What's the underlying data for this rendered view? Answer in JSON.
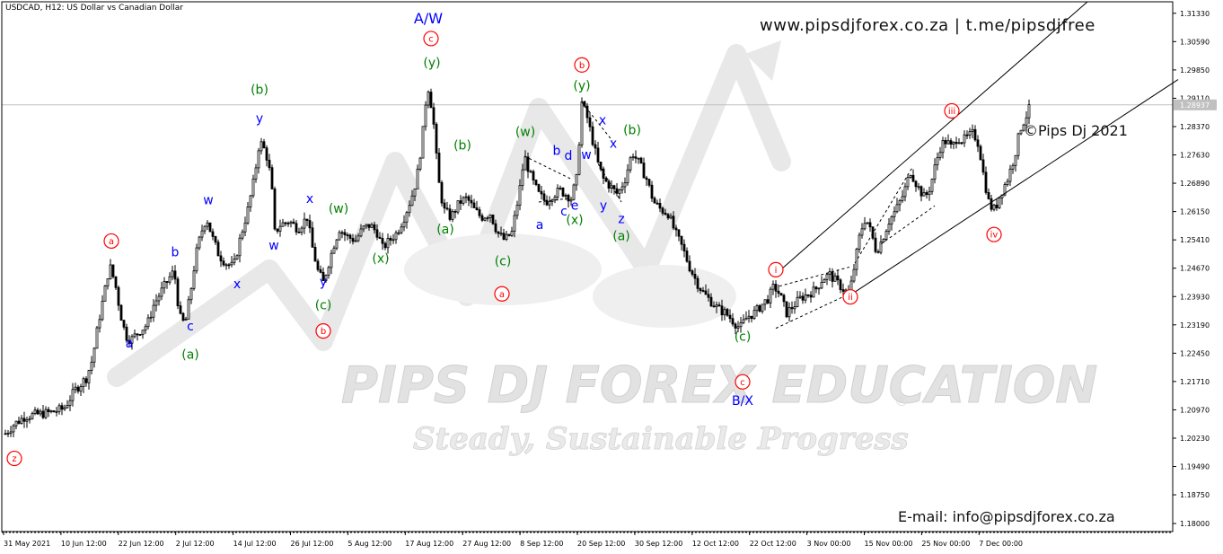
{
  "header": {
    "symbol_info": "USDCAD, H12:  US Dollar vs Canadian Dollar",
    "website": "www.pipsdjforex.co.za  |  t.me/pipsdjfree",
    "copyright": "©Pips Dj 2021",
    "email": "E-mail: info@pipsdjforex.co.za"
  },
  "watermark": {
    "title": "PIPS DJ FOREX EDUCATION",
    "tagline": "Steady, Sustainable Progress",
    "registered": "®"
  },
  "chart_data": {
    "type": "candlestick",
    "symbol": "USDCAD",
    "timeframe": "H12",
    "current_price_label": "1.28937",
    "y_ticks": [
      "1.31330",
      "1.30590",
      "1.29850",
      "1.29110",
      "1.28370",
      "1.27630",
      "1.26890",
      "1.26150",
      "1.25410",
      "1.24670",
      "1.23930",
      "1.23190",
      "1.22450",
      "1.21710",
      "1.20970",
      "1.20230",
      "1.19490",
      "1.18750",
      "1.18000"
    ],
    "ylim": [
      1.1779,
      1.3163
    ],
    "x_ticks": [
      "31 May 2021",
      "10 Jun 12:00",
      "22 Jun 12:00",
      "2 Jul 12:00",
      "14 Jul 12:00",
      "26 Jul 12:00",
      "5 Aug 12:00",
      "17 Aug 12:00",
      "27 Aug 12:00",
      "8 Sep 12:00",
      "20 Sep 12:00",
      "30 Sep 12:00",
      "12 Oct 12:00",
      "22 Oct 12:00",
      "3 Nov 00:00",
      "15 Nov 00:00",
      "25 Nov 00:00",
      "7 Dec 00:00"
    ],
    "price_path": [
      [
        0,
        1.2035
      ],
      [
        10,
        1.206
      ],
      [
        22,
        1.208
      ],
      [
        35,
        1.2085
      ],
      [
        50,
        1.209
      ],
      [
        65,
        1.21
      ],
      [
        78,
        1.215
      ],
      [
        90,
        1.218
      ],
      [
        97,
        1.223
      ],
      [
        104,
        1.233
      ],
      [
        110,
        1.24
      ],
      [
        116,
        1.2475
      ],
      [
        122,
        1.243
      ],
      [
        128,
        1.235
      ],
      [
        134,
        1.229
      ],
      [
        140,
        1.228
      ],
      [
        148,
        1.23
      ],
      [
        158,
        1.232
      ],
      [
        165,
        1.237
      ],
      [
        172,
        1.24
      ],
      [
        182,
        1.244
      ],
      [
        188,
        1.246
      ],
      [
        194,
        1.234
      ],
      [
        200,
        1.232
      ],
      [
        206,
        1.24
      ],
      [
        212,
        1.25
      ],
      [
        218,
        1.256
      ],
      [
        224,
        1.26
      ],
      [
        230,
        1.255
      ],
      [
        238,
        1.25
      ],
      [
        246,
        1.248
      ],
      [
        254,
        1.247
      ],
      [
        262,
        1.255
      ],
      [
        270,
        1.262
      ],
      [
        277,
        1.27
      ],
      [
        283,
        1.28
      ],
      [
        290,
        1.277
      ],
      [
        296,
        1.27
      ],
      [
        300,
        1.256
      ],
      [
        306,
        1.258
      ],
      [
        316,
        1.259
      ],
      [
        326,
        1.257
      ],
      [
        336,
        1.26
      ],
      [
        342,
        1.252
      ],
      [
        348,
        1.246
      ],
      [
        354,
        1.243
      ],
      [
        360,
        1.248
      ],
      [
        366,
        1.253
      ],
      [
        372,
        1.257
      ],
      [
        380,
        1.255
      ],
      [
        390,
        1.254
      ],
      [
        398,
        1.257
      ],
      [
        406,
        1.258
      ],
      [
        414,
        1.256
      ],
      [
        420,
        1.252
      ],
      [
        428,
        1.254
      ],
      [
        436,
        1.256
      ],
      [
        444,
        1.26
      ],
      [
        452,
        1.265
      ],
      [
        458,
        1.27
      ],
      [
        464,
        1.28
      ],
      [
        470,
        1.295
      ],
      [
        476,
        1.287
      ],
      [
        482,
        1.27
      ],
      [
        488,
        1.262
      ],
      [
        496,
        1.26
      ],
      [
        506,
        1.264
      ],
      [
        514,
        1.265
      ],
      [
        522,
        1.262
      ],
      [
        530,
        1.26
      ],
      [
        540,
        1.261
      ],
      [
        548,
        1.256
      ],
      [
        556,
        1.254
      ],
      [
        564,
        1.256
      ],
      [
        572,
        1.266
      ],
      [
        578,
        1.276
      ],
      [
        586,
        1.27
      ],
      [
        594,
        1.266
      ],
      [
        602,
        1.264
      ],
      [
        610,
        1.266
      ],
      [
        618,
        1.267
      ],
      [
        624,
        1.266
      ],
      [
        630,
        1.265
      ],
      [
        636,
        1.27
      ],
      [
        642,
        1.29
      ],
      [
        648,
        1.286
      ],
      [
        654,
        1.28
      ],
      [
        660,
        1.274
      ],
      [
        666,
        1.27
      ],
      [
        674,
        1.268
      ],
      [
        682,
        1.266
      ],
      [
        690,
        1.27
      ],
      [
        698,
        1.277
      ],
      [
        706,
        1.274
      ],
      [
        714,
        1.27
      ],
      [
        722,
        1.264
      ],
      [
        730,
        1.262
      ],
      [
        738,
        1.261
      ],
      [
        746,
        1.256
      ],
      [
        754,
        1.252
      ],
      [
        762,
        1.247
      ],
      [
        770,
        1.243
      ],
      [
        778,
        1.24
      ],
      [
        786,
        1.238
      ],
      [
        794,
        1.236
      ],
      [
        802,
        1.235
      ],
      [
        810,
        1.233
      ],
      [
        818,
        1.231
      ],
      [
        826,
        1.234
      ],
      [
        834,
        1.235
      ],
      [
        842,
        1.237
      ],
      [
        850,
        1.239
      ],
      [
        856,
        1.242
      ],
      [
        862,
        1.24
      ],
      [
        870,
        1.235
      ],
      [
        878,
        1.237
      ],
      [
        886,
        1.239
      ],
      [
        894,
        1.24
      ],
      [
        902,
        1.241
      ],
      [
        910,
        1.244
      ],
      [
        918,
        1.245
      ],
      [
        926,
        1.243
      ],
      [
        934,
        1.241
      ],
      [
        940,
        1.24
      ],
      [
        946,
        1.248
      ],
      [
        952,
        1.256
      ],
      [
        958,
        1.26
      ],
      [
        964,
        1.256
      ],
      [
        970,
        1.251
      ],
      [
        976,
        1.254
      ],
      [
        984,
        1.259
      ],
      [
        992,
        1.262
      ],
      [
        1000,
        1.266
      ],
      [
        1008,
        1.272
      ],
      [
        1016,
        1.268
      ],
      [
        1024,
        1.265
      ],
      [
        1030,
        1.268
      ],
      [
        1036,
        1.274
      ],
      [
        1042,
        1.279
      ],
      [
        1048,
        1.28
      ],
      [
        1054,
        1.278
      ],
      [
        1060,
        1.281
      ],
      [
        1066,
        1.28
      ],
      [
        1072,
        1.281
      ],
      [
        1078,
        1.282
      ],
      [
        1084,
        1.279
      ],
      [
        1090,
        1.27
      ],
      [
        1096,
        1.263
      ],
      [
        1102,
        1.262
      ],
      [
        1108,
        1.266
      ],
      [
        1116,
        1.27
      ],
      [
        1124,
        1.276
      ],
      [
        1130,
        1.283
      ],
      [
        1136,
        1.286
      ],
      [
        1142,
        1.2893
      ]
    ],
    "annotations": [
      {
        "text": "A/W",
        "color": "#0000ff",
        "x": 0,
        "p": 1.3135
      },
      {
        "text": "(b)",
        "color": "#008000",
        "x": 283,
        "p": 1.2923
      },
      {
        "text": "y",
        "color": "#0000ff",
        "x": 283,
        "p": 1.2847
      },
      {
        "text": "w",
        "color": "#0000ff",
        "x": 226,
        "p": 1.2634
      },
      {
        "text": "b",
        "color": "#0000ff",
        "x": 189,
        "p": 1.2498
      },
      {
        "text": "x",
        "color": "#0000ff",
        "x": 258,
        "p": 1.2415
      },
      {
        "text": "a",
        "color": "#0000ff",
        "x": 138,
        "p": 1.226
      },
      {
        "text": "c",
        "color": "#0000ff",
        "x": 206,
        "p": 1.2305
      },
      {
        "text": "(a)",
        "color": "#008000",
        "x": 206,
        "p": 1.223
      },
      {
        "text": "w",
        "color": "#0000ff",
        "x": 299,
        "p": 1.2515
      },
      {
        "text": "x",
        "color": "#0000ff",
        "x": 339,
        "p": 1.2638
      },
      {
        "text": "(w)",
        "color": "#008000",
        "x": 371,
        "p": 1.2612
      },
      {
        "text": "y",
        "color": "#0000ff",
        "x": 354,
        "p": 1.242
      },
      {
        "text": "(c)",
        "color": "#008000",
        "x": 354,
        "p": 1.236
      },
      {
        "text": "(x)",
        "color": "#008000",
        "x": 418,
        "p": 1.2482
      },
      {
        "text": "(y)",
        "color": "#008000",
        "x": 475,
        "p": 1.2993
      },
      {
        "text": "(b)",
        "color": "#008000",
        "x": 509,
        "p": 1.2777
      },
      {
        "text": "(a)",
        "color": "#008000",
        "x": 490,
        "p": 1.2558
      },
      {
        "text": "(c)",
        "color": "#008000",
        "x": 554,
        "p": 1.2475
      },
      {
        "text": "(w)",
        "color": "#008000",
        "x": 579,
        "p": 1.2812
      },
      {
        "text": "b",
        "color": "#0000ff",
        "x": 614,
        "p": 1.2763
      },
      {
        "text": "d",
        "color": "#0000ff",
        "x": 627,
        "p": 1.275
      },
      {
        "text": "c",
        "color": "#0000ff",
        "x": 622,
        "p": 1.2605
      },
      {
        "text": "e",
        "color": "#0000ff",
        "x": 634,
        "p": 1.262
      },
      {
        "text": "a",
        "color": "#0000ff",
        "x": 595,
        "p": 1.257
      },
      {
        "text": "(x)",
        "color": "#008000",
        "x": 634,
        "p": 1.2582
      },
      {
        "text": "(y)",
        "color": "#008000",
        "x": 642,
        "p": 1.2933
      },
      {
        "text": "x",
        "color": "#0000ff",
        "x": 665,
        "p": 1.2843
      },
      {
        "text": "w",
        "color": "#0000ff",
        "x": 647,
        "p": 1.2752
      },
      {
        "text": "x",
        "color": "#0000ff",
        "x": 677,
        "p": 1.2782
      },
      {
        "text": "y",
        "color": "#0000ff",
        "x": 666,
        "p": 1.262
      },
      {
        "text": "z",
        "color": "#0000ff",
        "x": 686,
        "p": 1.2585
      },
      {
        "text": "(b)",
        "color": "#008000",
        "x": 698,
        "p": 1.2817
      },
      {
        "text": "(a)",
        "color": "#008000",
        "x": 686,
        "p": 1.254
      },
      {
        "text": "(c)",
        "color": "#008000",
        "x": 821,
        "p": 1.2278
      },
      {
        "text": "B/X",
        "color": "#0000ff",
        "x": 821,
        "p": 1.211
      }
    ],
    "circled_labels": [
      {
        "text": "z",
        "x": 10,
        "p": 1.197
      },
      {
        "text": "a",
        "x": 118,
        "p": 1.2538
      },
      {
        "text": "b",
        "x": 354,
        "p": 1.2303
      },
      {
        "text": "c",
        "x": 474,
        "p": 1.3067
      },
      {
        "text": "a",
        "x": 553,
        "p": 1.24
      },
      {
        "text": "b",
        "x": 642,
        "p": 1.2998
      },
      {
        "text": "c",
        "x": 821,
        "p": 1.217
      },
      {
        "text": "i",
        "x": 858,
        "p": 1.2463
      },
      {
        "text": "ii",
        "x": 941,
        "p": 1.2392
      },
      {
        "text": "iii",
        "x": 1054,
        "p": 1.2878
      },
      {
        "text": "iv",
        "x": 1101,
        "p": 1.2555
      }
    ],
    "trend_lines": [
      {
        "style": "solid",
        "from": [
          862,
          1.246
        ],
        "to": [
          1205,
          1.3163
        ]
      },
      {
        "style": "solid",
        "from": [
          941,
          1.2397
        ],
        "to": [
          1306,
          1.296
        ]
      }
    ],
    "dashed_lines": [
      {
        "from": [
          862,
          1.242
        ],
        "to": [
          940,
          1.247
        ]
      },
      {
        "from": [
          858,
          1.231
        ],
        "to": [
          940,
          1.24
        ]
      },
      {
        "from": [
          946,
          1.248
        ],
        "to": [
          1010,
          1.273
        ]
      },
      {
        "from": [
          975,
          1.253
        ],
        "to": [
          1035,
          1.263
        ]
      },
      {
        "from": [
          578,
          1.276
        ],
        "to": [
          630,
          1.27
        ]
      },
      {
        "from": [
          594,
          1.264
        ],
        "to": [
          630,
          1.265
        ]
      },
      {
        "from": [
          642,
          1.29
        ],
        "to": [
          676,
          1.28
        ]
      },
      {
        "from": [
          660,
          1.274
        ],
        "to": [
          686,
          1.264
        ]
      }
    ]
  }
}
